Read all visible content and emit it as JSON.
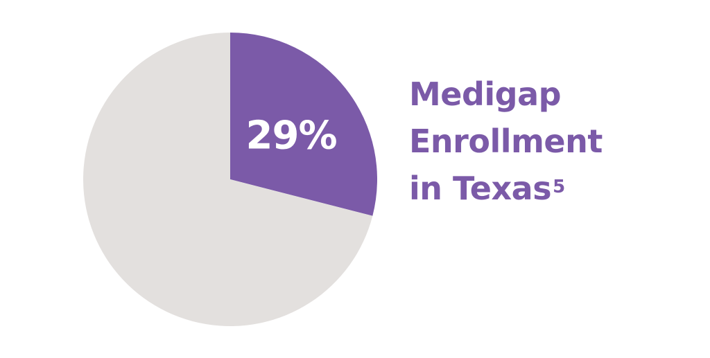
{
  "chart_data": {
    "type": "pie",
    "title_lines": [
      "Medigap",
      "Enrollment",
      "in Texas"
    ],
    "title_superscript": "5",
    "slices": [
      {
        "value": 29,
        "label": "29%",
        "color": "#7b5aa8"
      },
      {
        "value": 71,
        "label": "",
        "color": "#e3e0de"
      }
    ],
    "start_angle_deg": 0,
    "direction": "clockwise"
  }
}
